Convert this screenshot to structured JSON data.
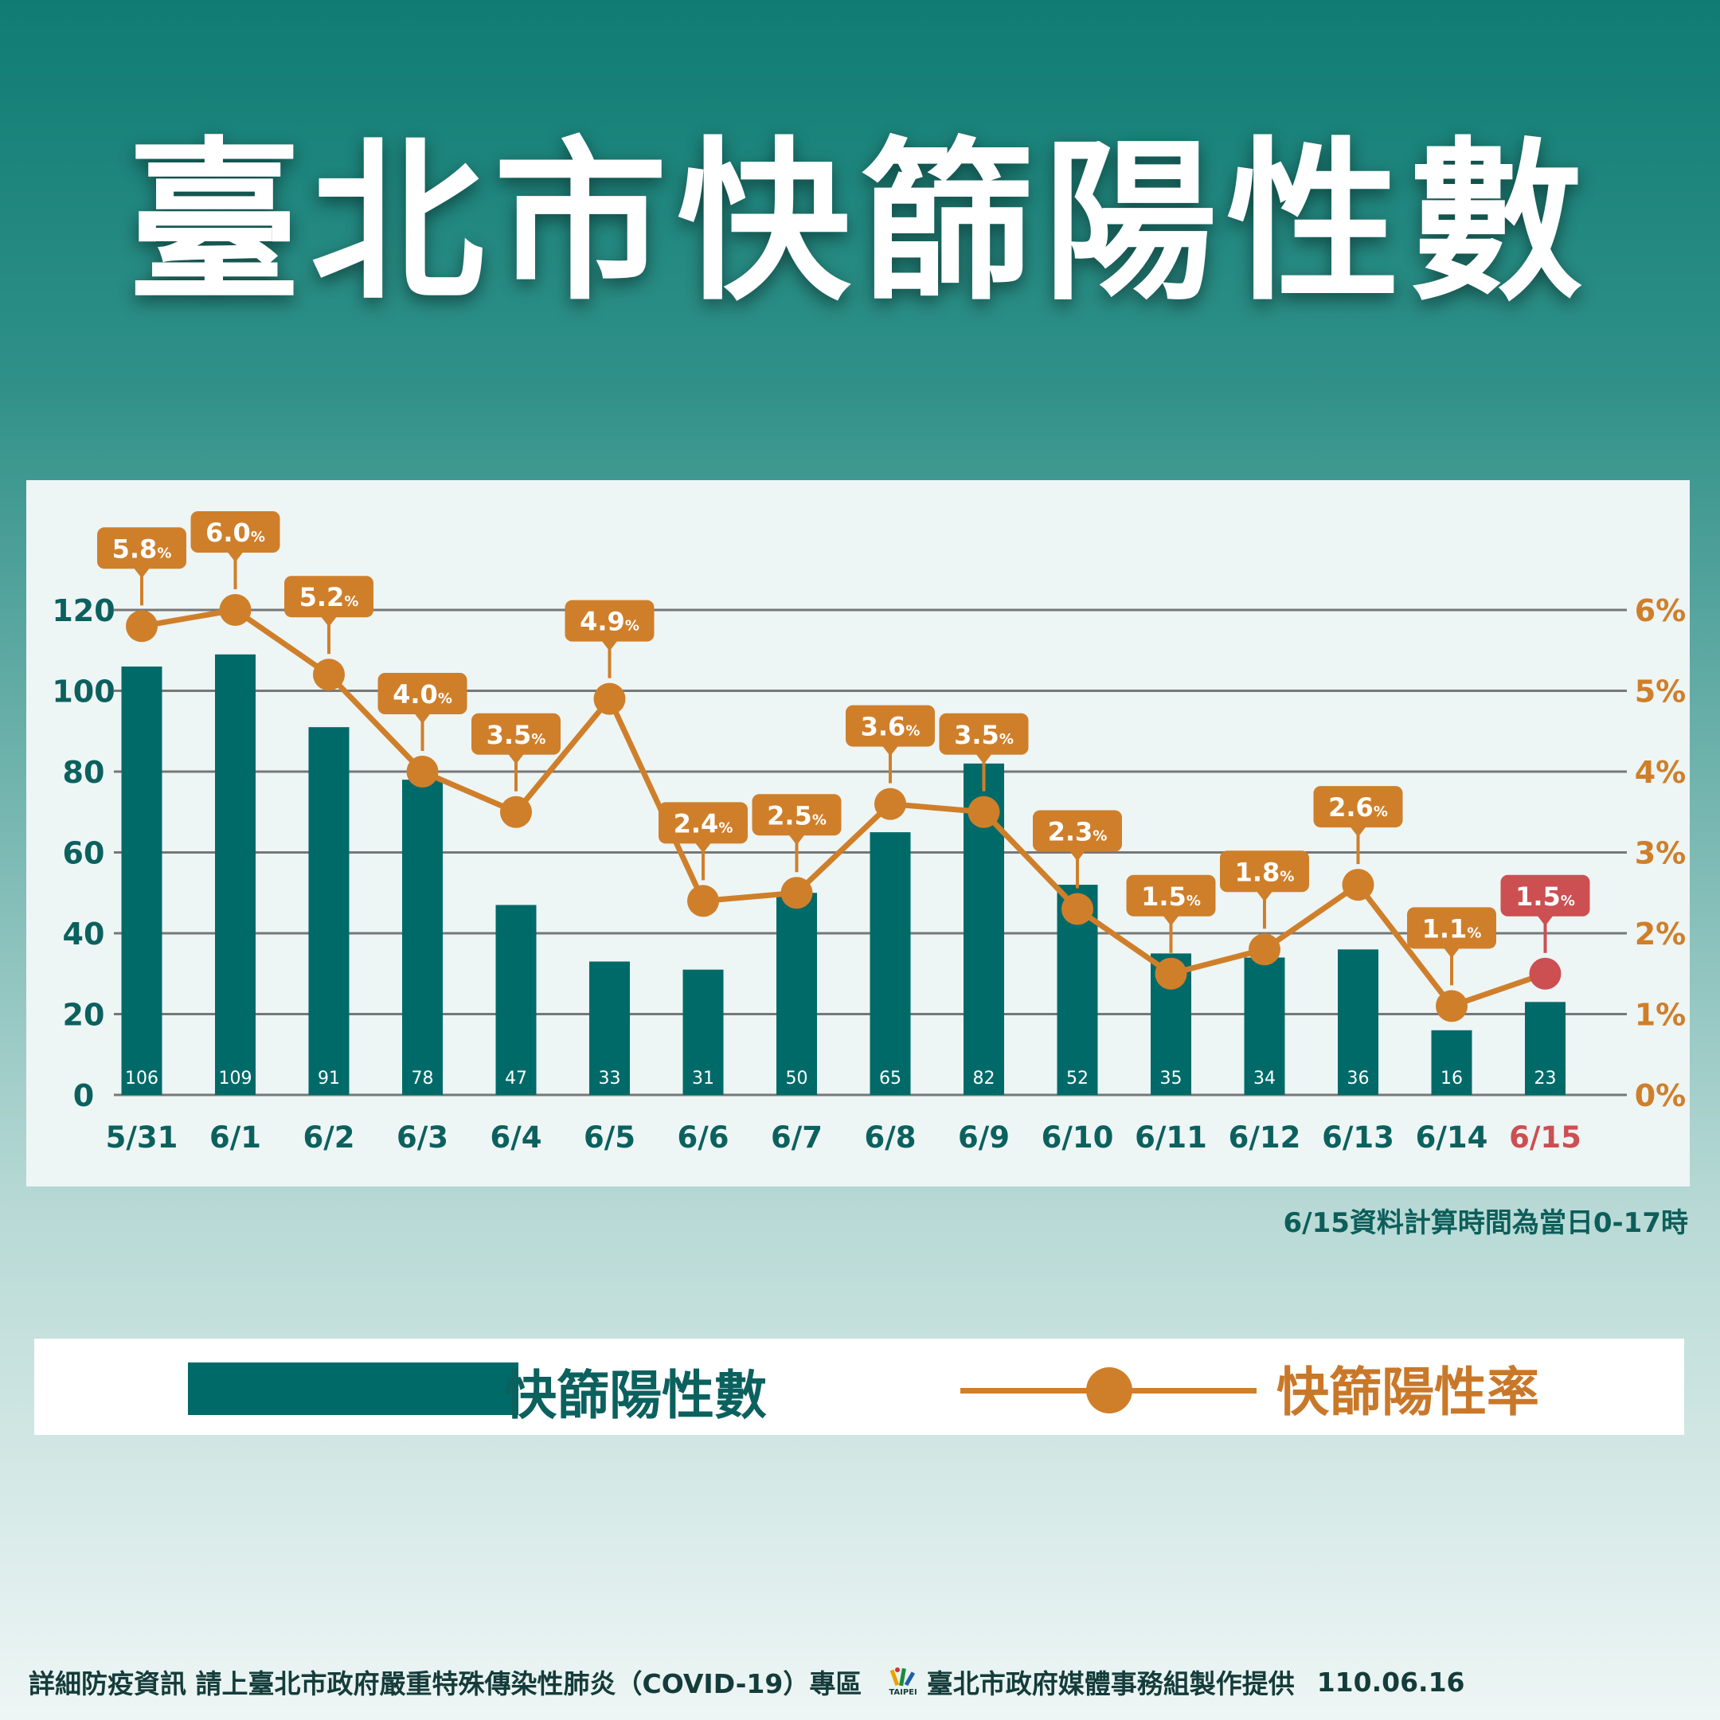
{
  "title": "臺北市快篩陽性數",
  "footnote": "6/15資料計算時間為當日0-17時",
  "legend": {
    "bar_label": "快篩陽性數",
    "line_label": "快篩陽性率"
  },
  "footer": {
    "info": "詳細防疫資訊 請上臺北市政府嚴重特殊傳染性肺炎（COVID-19）專區",
    "logo_text": "TAIPEI",
    "credit": "臺北市政府媒體事務組製作提供",
    "date": "110.06.16"
  },
  "colors": {
    "bar": "#006a69",
    "line": "#cf7f2a",
    "highlight": "#cc4f52",
    "axis_text": "#0b615e",
    "grid": "#777777"
  },
  "chart_data": {
    "type": "bar",
    "categories": [
      "5/31",
      "6/1",
      "6/2",
      "6/3",
      "6/4",
      "6/5",
      "6/6",
      "6/7",
      "6/8",
      "6/9",
      "6/10",
      "6/11",
      "6/12",
      "6/13",
      "6/14",
      "6/15"
    ],
    "series": [
      {
        "name": "快篩陽性數",
        "type": "bar",
        "axis": "left",
        "values": [
          106,
          109,
          91,
          78,
          47,
          33,
          31,
          50,
          65,
          82,
          52,
          35,
          34,
          36,
          16,
          23
        ]
      },
      {
        "name": "快篩陽性率",
        "type": "line",
        "axis": "right",
        "values": [
          5.8,
          6.0,
          5.2,
          4.0,
          3.5,
          4.9,
          2.4,
          2.5,
          3.6,
          3.5,
          2.3,
          1.5,
          1.8,
          2.6,
          1.1,
          1.5
        ],
        "labels": [
          "5.8",
          "6.0",
          "5.2",
          "4.0",
          "3.5",
          "4.9",
          "2.4",
          "2.5",
          "3.6",
          "3.5",
          "2.3",
          "1.5",
          "1.8",
          "2.6",
          "1.1",
          "1.5"
        ],
        "unit": "%"
      }
    ],
    "y_left": {
      "ticks": [
        "0",
        "20",
        "40",
        "60",
        "80",
        "100",
        "120"
      ],
      "range": [
        0,
        120
      ]
    },
    "y_right": {
      "ticks": [
        "0%",
        "1%",
        "2%",
        "3%",
        "4%",
        "5%",
        "6%"
      ],
      "range": [
        0,
        6
      ]
    },
    "highlight_category": "6/15",
    "grid": true
  }
}
